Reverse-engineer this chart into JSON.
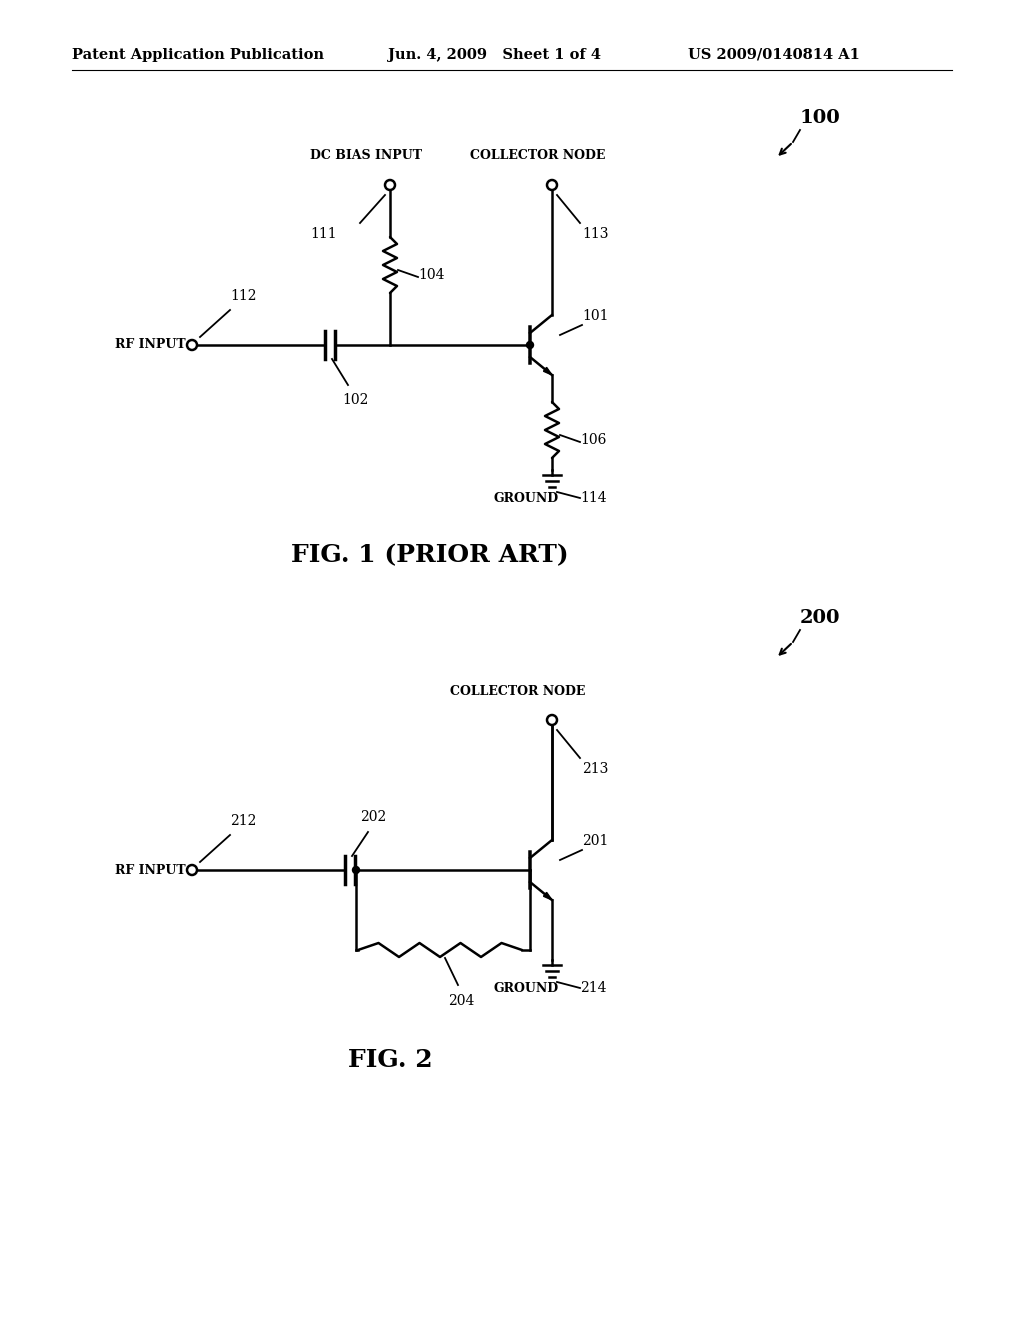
{
  "bg_color": "#ffffff",
  "header_text": "Patent Application Publication",
  "header_date": "Jun. 4, 2009   Sheet 1 of 4",
  "header_patent": "US 2009/0140814 A1",
  "fig1_caption": "FIG. 1 (PRIOR ART)",
  "fig2_caption": "FIG. 2",
  "lw": 1.8,
  "lw_thick": 2.5,
  "lw_thin": 1.3,
  "font_size_header": 10.5,
  "font_size_caption": 18,
  "font_size_refnum": 10,
  "font_size_label": 9,
  "font_size_big_ref": 14
}
